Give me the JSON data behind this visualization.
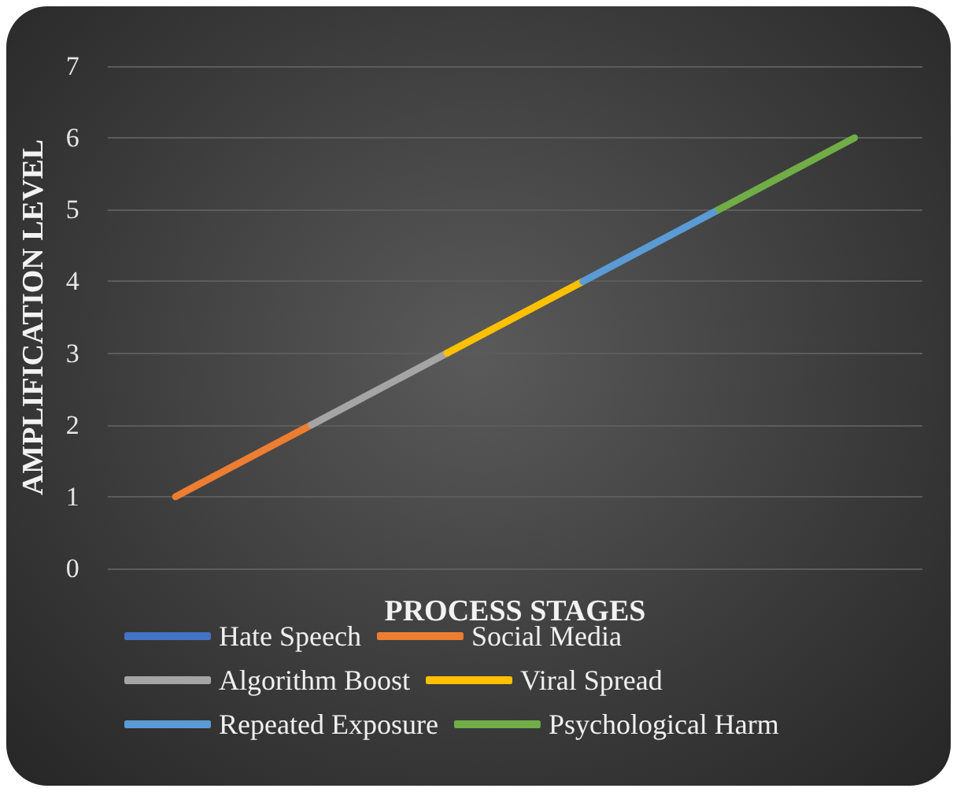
{
  "chart_data": {
    "type": "line",
    "xlabel": "PROCESS STAGES",
    "ylabel": "AMPLIFICATION LEVEL",
    "categories": [
      null,
      null,
      null,
      null,
      null,
      null
    ],
    "series": [
      {
        "name": "Hate Speech",
        "color": "#4472c4",
        "values": [
          null,
          null,
          null,
          null,
          null,
          null
        ]
      },
      {
        "name": "Social Media",
        "color": "#ed7d31",
        "values": [
          1,
          2,
          null,
          null,
          null,
          null
        ]
      },
      {
        "name": "Algorithm Boost",
        "color": "#a5a5a5",
        "values": [
          null,
          2,
          3,
          null,
          null,
          null
        ]
      },
      {
        "name": "Viral Spread",
        "color": "#ffc000",
        "values": [
          null,
          null,
          3,
          4,
          null,
          null
        ]
      },
      {
        "name": "Repeated Exposure",
        "color": "#5b9bd5",
        "values": [
          null,
          null,
          null,
          4,
          5,
          null
        ]
      },
      {
        "name": "Psychological Harm",
        "color": "#70ad47",
        "values": [
          null,
          null,
          null,
          null,
          5,
          6
        ]
      }
    ],
    "ylim": [
      0,
      7
    ],
    "yticks": [
      0,
      1,
      2,
      3,
      4,
      5,
      6,
      7
    ],
    "grid": "y",
    "legend": "bottom",
    "marker": "none",
    "line_style": "solid"
  }
}
